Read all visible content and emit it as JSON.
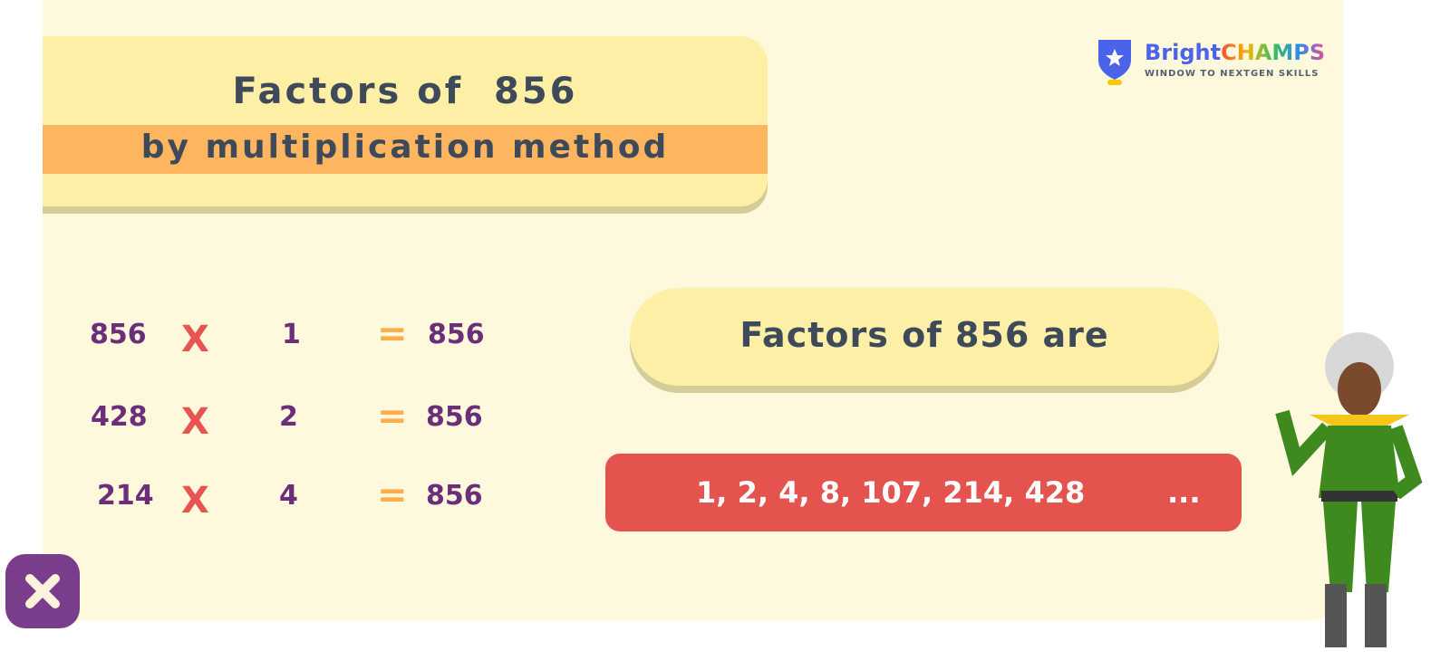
{
  "title": {
    "line1": "Factors of  856",
    "line2": "by multiplication method"
  },
  "rows": [
    {
      "a": "856",
      "op": "X",
      "b": "1",
      "eq": "=",
      "result": "856"
    },
    {
      "a": "428",
      "op": "X",
      "b": "2",
      "eq": "=",
      "result": "856"
    },
    {
      "a": "214",
      "op": "X",
      "b": "4",
      "eq": "=",
      "result": "856"
    }
  ],
  "factors": {
    "heading": "Factors of 856 are",
    "values": "1, 2, 4, 8, 107, 214, 428",
    "ellipsis": "..."
  },
  "logo": {
    "bright": "Bright",
    "champs": "CHAMPS",
    "tagline": "WINDOW TO NEXTGEN SKILLS"
  },
  "colors": {
    "accent_red": "#e5534f",
    "purple": "#6b2f7a",
    "orange": "#fdb55f"
  }
}
